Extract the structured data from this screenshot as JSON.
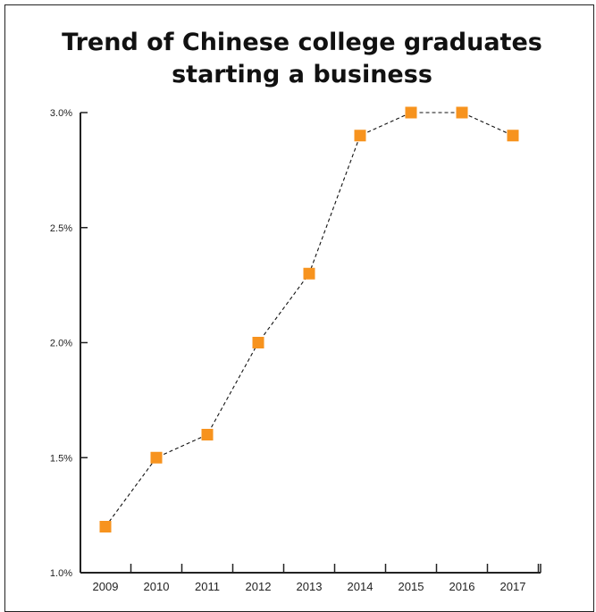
{
  "chart_data": {
    "type": "line",
    "title_lines": [
      "Trend of Chinese college graduates",
      "starting a business"
    ],
    "xlabel": "",
    "ylabel": "",
    "categories": [
      "2009",
      "2010",
      "2011",
      "2012",
      "2013",
      "2014",
      "2015",
      "2016",
      "2017"
    ],
    "series": [
      {
        "values": [
          1.2,
          1.5,
          1.6,
          2.0,
          2.3,
          2.9,
          3.0,
          3.0,
          2.9
        ]
      }
    ],
    "ylim": [
      1.0,
      3.0
    ],
    "yticks": [
      1.0,
      1.5,
      2.0,
      2.5,
      3.0
    ],
    "ytick_labels": [
      "1.0%",
      "1.5%",
      "2.0%",
      "2.5%",
      "3.0%"
    ],
    "grid": false,
    "legend": "none",
    "line_style": "dashed",
    "marker": "square",
    "colors": {
      "marker": "#F7931E",
      "line": "#111111",
      "axis": "#222222"
    }
  }
}
